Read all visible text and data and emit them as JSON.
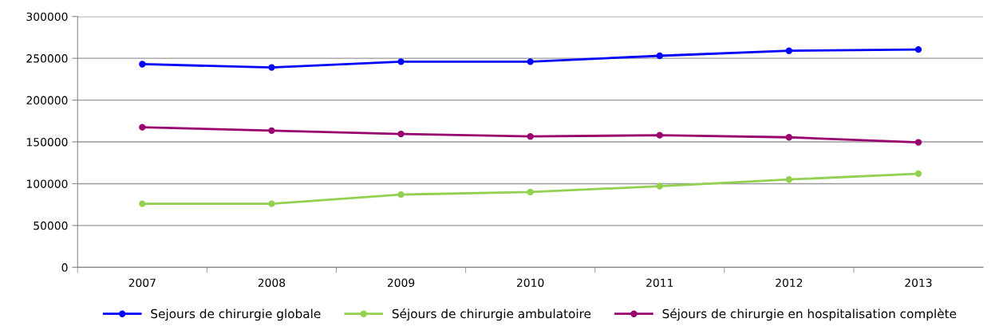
{
  "chart_data": {
    "type": "line",
    "categories": [
      "2007",
      "2008",
      "2009",
      "2010",
      "2011",
      "2012",
      "2013"
    ],
    "series": [
      {
        "name": "Sejours de chirurgie globale",
        "color": "#0000ff",
        "values": [
          243000,
          239000,
          246000,
          246000,
          253000,
          259000,
          260500
        ]
      },
      {
        "name": "Séjours de chirurgie ambulatoire",
        "color": "#92d050",
        "values": [
          76000,
          76000,
          87000,
          90000,
          97000,
          105000,
          112000
        ]
      },
      {
        "name": "Séjours de chirurgie en hospitalisation complète",
        "color": "#99006e",
        "values": [
          167500,
          163500,
          159500,
          156500,
          158000,
          155500,
          149500
        ]
      }
    ],
    "ylim": [
      0,
      300000
    ],
    "yticks": [
      0,
      50000,
      100000,
      150000,
      200000,
      250000,
      300000
    ],
    "grid": "y",
    "legend": "bottom",
    "marker": "circle",
    "line_style": "solid"
  }
}
